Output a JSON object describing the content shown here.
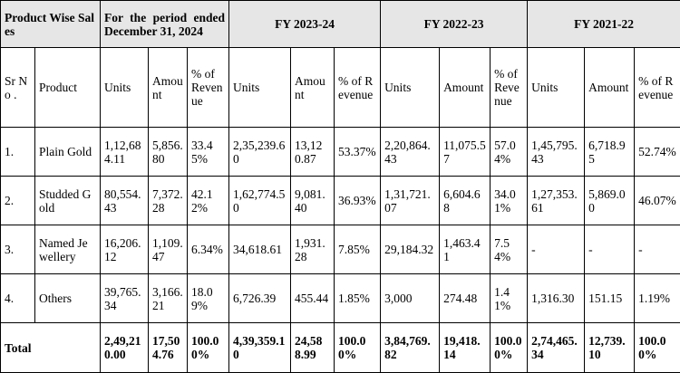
{
  "header": {
    "title": "Product Wise Sales",
    "period": "For the period ended December 31, 2024",
    "fy1": "FY 2023-24",
    "fy2": "FY 2022-23",
    "fy3": "FY 2021-22"
  },
  "subheader": {
    "sr_no": "Sr No .",
    "product": "Product",
    "units": "Units",
    "amount": "Amount",
    "pct": "% of Revenue"
  },
  "rows": [
    {
      "sr": "1.",
      "product": "Plain Gold",
      "c": [
        "1,12,684.11",
        "5,856.80",
        "33.45%",
        "2,35,239.60",
        "13,120.87",
        "53.37%",
        "2,20,864.43",
        "11,075.57",
        "57.04%",
        "1,45,795.43",
        "6,718.95",
        "52.74%"
      ]
    },
    {
      "sr": "2.",
      "product": "Studded Gold",
      "c": [
        "80,554.43",
        "7,372.28",
        "42.12%",
        "1,62,774.50",
        "9,081.40",
        "36.93%",
        "1,31,721.07",
        "6,604.68",
        "34.01%",
        "1,27,353.61",
        "5,869.00",
        "46.07%"
      ]
    },
    {
      "sr": "3.",
      "product": "Named Jewellery",
      "c": [
        "16,206.12",
        "1,109.47",
        "6.34%",
        "34,618.61",
        "1,931.28",
        "7.85%",
        "29,184.32",
        "1,463.41",
        "7.54%",
        "-",
        "-",
        "-"
      ]
    },
    {
      "sr": "4.",
      "product": "Others",
      "c": [
        "39,765.34",
        "3,166.21",
        "18.09%",
        "6,726.39",
        "455.44",
        "1.85%",
        "3,000",
        "274.48",
        "1.41%",
        "1,316.30",
        "151.15",
        "1.19%"
      ]
    }
  ],
  "total": {
    "label": "Total",
    "c": [
      "2,49,210.00",
      "17,504.76",
      "100.00%",
      "4,39,359.10",
      "24,588.99",
      "100.00%",
      "3,84,769.82",
      "19,418.14",
      "100.00%",
      "2,74,465.34",
      "12,739.10",
      "100.00%"
    ]
  }
}
